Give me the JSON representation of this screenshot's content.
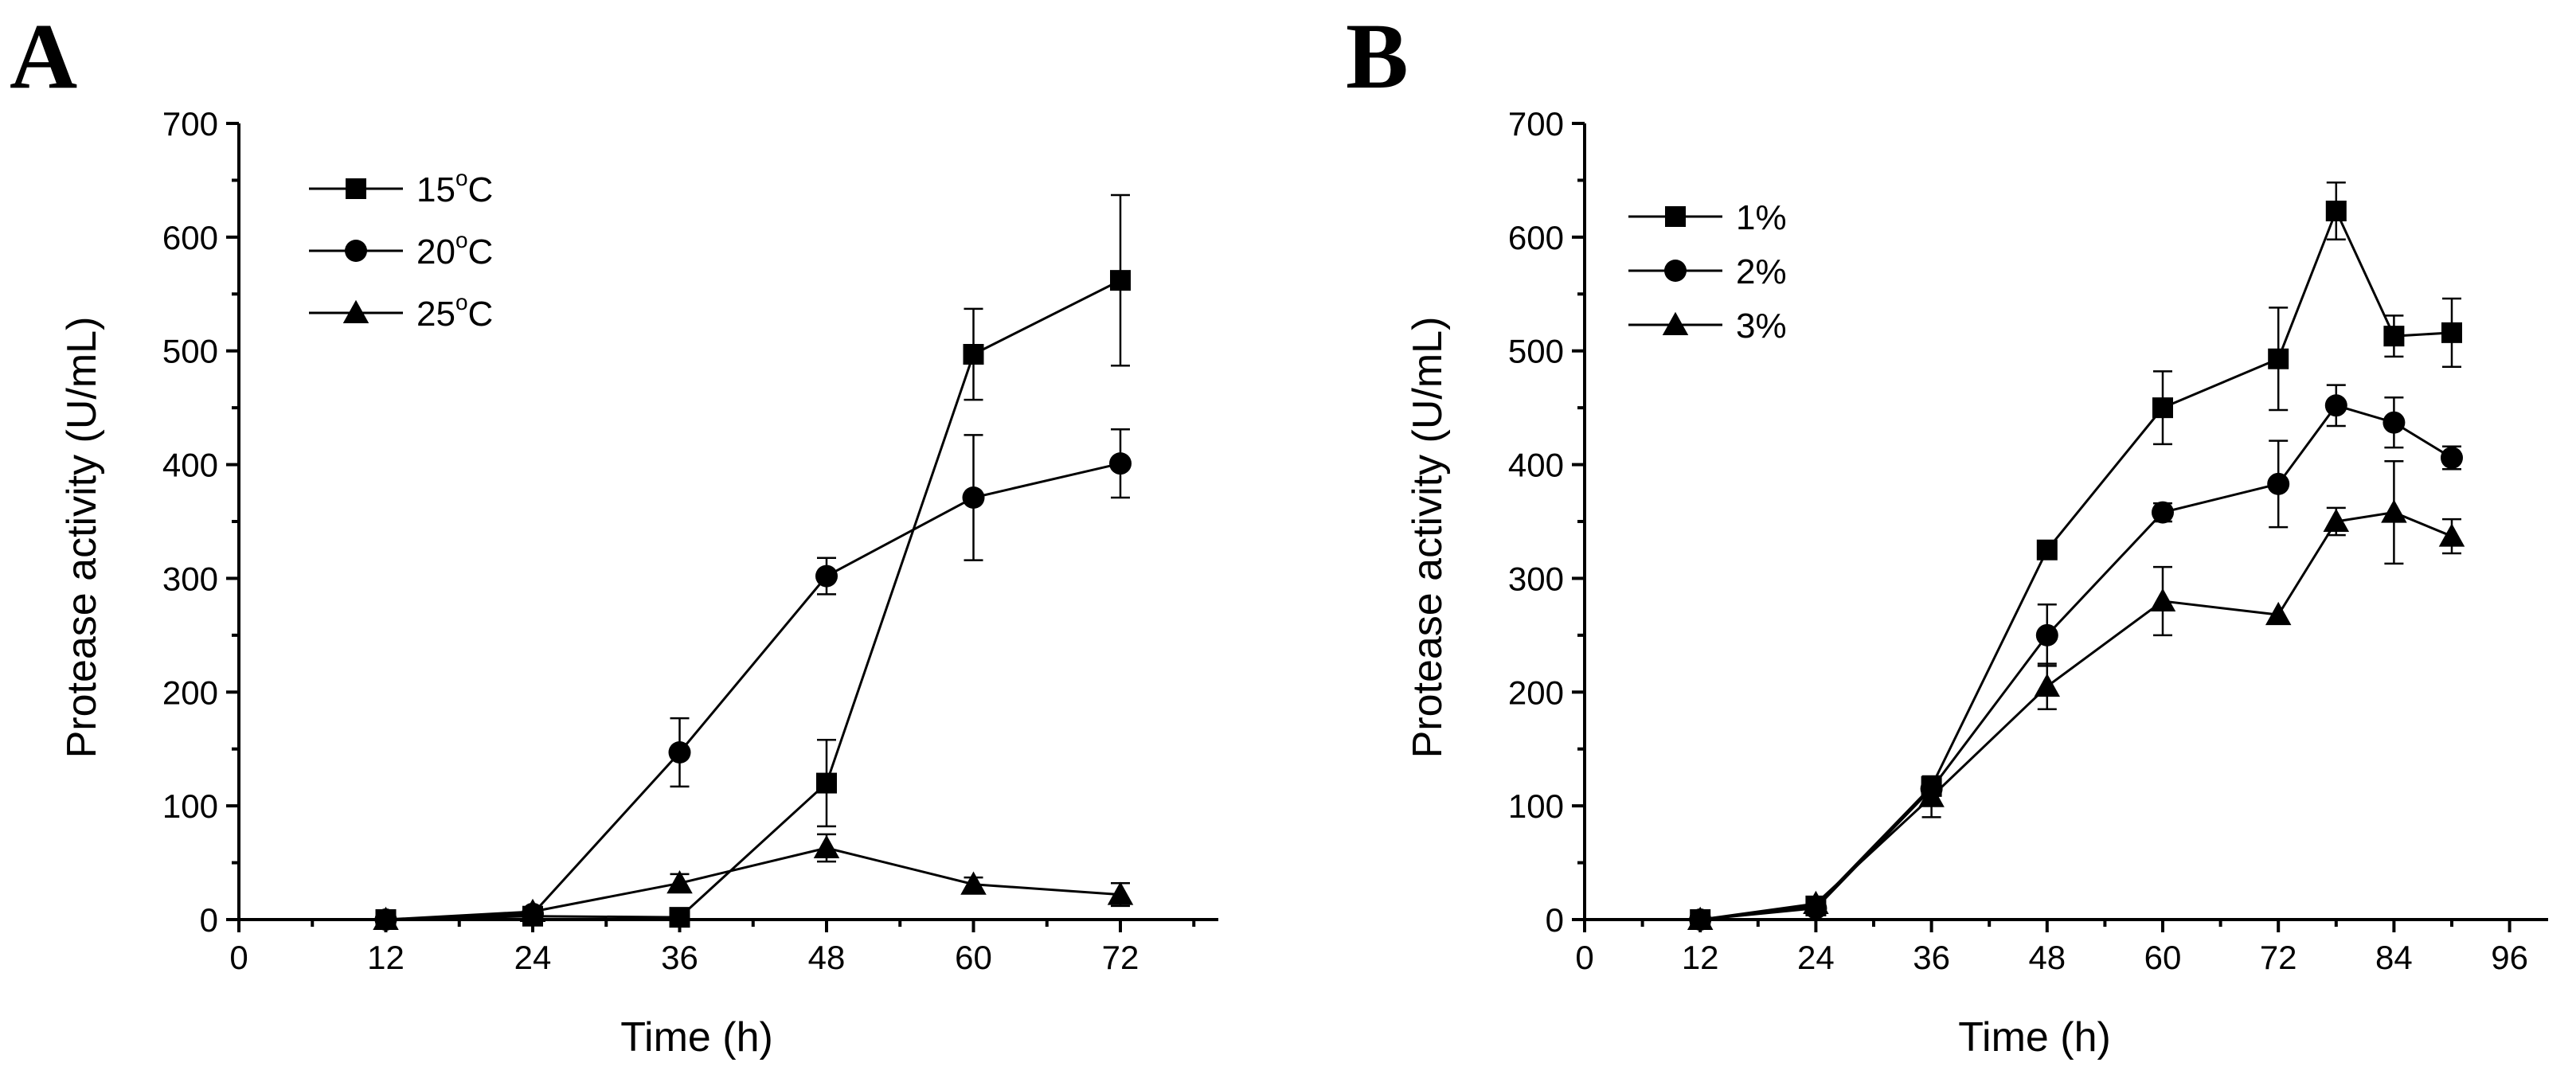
{
  "chart_data": [
    {
      "type": "line",
      "panel_label": "A",
      "xlabel": "Time (h)",
      "ylabel": "Protease activity (U/mL)",
      "xlim": [
        0,
        80
      ],
      "ylim": [
        0,
        700
      ],
      "xticks": [
        0,
        12,
        24,
        36,
        48,
        60,
        72
      ],
      "yticks": [
        0,
        100,
        200,
        300,
        400,
        500,
        600,
        700
      ],
      "legend_position": "top-left",
      "series": [
        {
          "name": "15°C",
          "legend_main": "15",
          "legend_sup": "o",
          "legend_tail": "C",
          "marker": "square",
          "x": [
            12,
            24,
            36,
            48,
            60,
            72
          ],
          "y": [
            0,
            3,
            2,
            120,
            497,
            562
          ],
          "err": [
            0,
            0,
            0,
            38,
            40,
            75
          ]
        },
        {
          "name": "20°C",
          "legend_main": "20",
          "legend_sup": "o",
          "legend_tail": "C",
          "marker": "circle",
          "x": [
            12,
            24,
            36,
            48,
            60,
            72
          ],
          "y": [
            0,
            5,
            147,
            302,
            371,
            401
          ],
          "err": [
            0,
            0,
            30,
            16,
            55,
            30
          ]
        },
        {
          "name": "25°C",
          "legend_main": "25",
          "legend_sup": "o",
          "legend_tail": "C",
          "marker": "triangle",
          "x": [
            12,
            24,
            36,
            48,
            60,
            72
          ],
          "y": [
            0,
            7,
            32,
            63,
            31,
            22
          ],
          "err": [
            0,
            0,
            8,
            12,
            6,
            10
          ]
        }
      ]
    },
    {
      "type": "line",
      "panel_label": "B",
      "xlabel": "Time (h)",
      "ylabel": "Protease activity (U/mL)",
      "xlim": [
        0,
        100
      ],
      "ylim": [
        0,
        700
      ],
      "xticks": [
        0,
        12,
        24,
        36,
        48,
        60,
        72,
        84,
        96
      ],
      "yticks": [
        0,
        100,
        200,
        300,
        400,
        500,
        600,
        700
      ],
      "legend_position": "top-left",
      "series": [
        {
          "name": "1%",
          "legend_main": "1%",
          "legend_sup": "",
          "legend_tail": "",
          "marker": "square",
          "x": [
            12,
            24,
            36,
            48,
            60,
            72,
            78,
            84,
            90
          ],
          "y": [
            0,
            12,
            117,
            325,
            450,
            493,
            623,
            513,
            516
          ],
          "err": [
            0,
            0,
            0,
            0,
            32,
            45,
            25,
            18,
            30
          ]
        },
        {
          "name": "2%",
          "legend_main": "2%",
          "legend_sup": "",
          "legend_tail": "",
          "marker": "circle",
          "x": [
            12,
            24,
            36,
            48,
            60,
            72,
            78,
            84,
            90
          ],
          "y": [
            0,
            10,
            115,
            250,
            358,
            383,
            452,
            437,
            406
          ],
          "err": [
            0,
            0,
            0,
            27,
            8,
            38,
            18,
            22,
            10
          ]
        },
        {
          "name": "3%",
          "legend_main": "3%",
          "legend_sup": "",
          "legend_tail": "",
          "marker": "triangle",
          "x": [
            12,
            24,
            36,
            48,
            60,
            72,
            78,
            84,
            90
          ],
          "y": [
            0,
            14,
            108,
            205,
            280,
            268,
            350,
            358,
            337
          ],
          "err": [
            0,
            0,
            18,
            20,
            30,
            0,
            12,
            45,
            15
          ]
        }
      ]
    }
  ]
}
